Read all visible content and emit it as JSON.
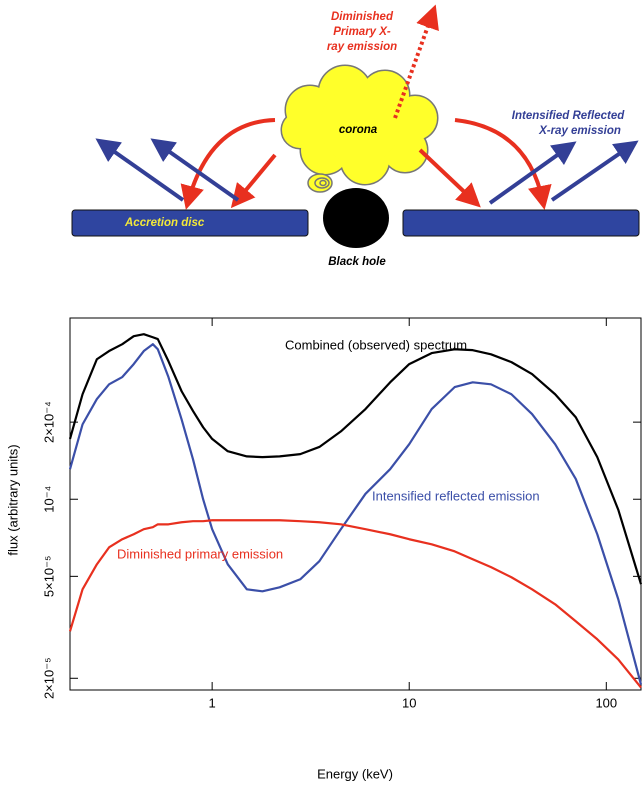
{
  "diagram": {
    "primary_label": [
      "Diminished",
      "Primary X-",
      "ray emission"
    ],
    "corona_label": "corona",
    "reflected_label": [
      "Intensified Reflected",
      "X-ray emission"
    ],
    "disc_label": "Accretion disc",
    "hole_label": "Black hole"
  },
  "chart_data": {
    "type": "line",
    "xlabel": "Energy (keV)",
    "ylabel": "flux (arbitrary units)",
    "xscale": "log",
    "yscale": "log",
    "xlim": [
      0.19,
      150
    ],
    "ylim": [
      1.8e-05,
      0.00051
    ],
    "xticks": [
      1,
      10,
      100
    ],
    "yticks": [
      {
        "value": 2e-05,
        "label": "2×10⁻⁵"
      },
      {
        "value": 5e-05,
        "label": "5×10⁻⁵"
      },
      {
        "value": 0.0001,
        "label": "10⁻⁴"
      },
      {
        "value": 0.0002,
        "label": "2×10⁻⁴"
      }
    ],
    "x": [
      0.19,
      0.22,
      0.26,
      0.3,
      0.35,
      0.4,
      0.45,
      0.5,
      0.53,
      0.6,
      0.7,
      0.8,
      0.9,
      1,
      1.2,
      1.5,
      1.8,
      2.2,
      2.8,
      3.5,
      4.5,
      6,
      8,
      10,
      13,
      17,
      21,
      26,
      33,
      42,
      55,
      70,
      90,
      115,
      150
    ],
    "series": [
      {
        "name": "Combined (observed) spectrum",
        "color": "#000000",
        "values": [
          0.000172,
          0.000257,
          0.000352,
          0.000379,
          0.000403,
          0.000433,
          0.000441,
          0.000429,
          0.000422,
          0.000346,
          0.000264,
          0.000221,
          0.000191,
          0.000172,
          0.000154,
          0.000147,
          0.000146,
          0.000147,
          0.00015,
          0.00016,
          0.000184,
          0.000225,
          0.000286,
          0.000337,
          0.000372,
          0.000385,
          0.000382,
          0.000368,
          0.000343,
          0.000308,
          0.000257,
          0.000209,
          0.000146,
          9.1e-05,
          4.66e-05
        ]
      },
      {
        "name": "Intensified reflected emission",
        "color": "#3b4fa8",
        "values": [
          0.000131,
          0.000196,
          0.000246,
          0.000281,
          0.0003,
          0.000337,
          0.000379,
          0.000403,
          0.000385,
          0.0003,
          0.000205,
          0.000143,
          0.0001,
          7.64e-05,
          5.57e-05,
          4.45e-05,
          4.37e-05,
          4.53e-05,
          4.87e-05,
          5.73e-05,
          7.64e-05,
          0.000105,
          0.000131,
          0.000164,
          0.000225,
          0.000274,
          0.000286,
          0.000281,
          0.000257,
          0.000215,
          0.000164,
          0.00012,
          7.3e-05,
          4.07e-05,
          1.89e-05
        ]
      },
      {
        "name": "Diminished primary emission",
        "color": "#e8301f",
        "values": [
          3.05e-05,
          4.45e-05,
          5.57e-05,
          6.49e-05,
          6.98e-05,
          7.3e-05,
          7.64e-05,
          7.78e-05,
          7.98e-05,
          7.98e-05,
          8.13e-05,
          8.21e-05,
          8.21e-05,
          8.28e-05,
          8.28e-05,
          8.28e-05,
          8.28e-05,
          8.28e-05,
          8.21e-05,
          8.13e-05,
          7.98e-05,
          7.64e-05,
          7.3e-05,
          6.98e-05,
          6.67e-05,
          6.26e-05,
          5.83e-05,
          5.43e-05,
          4.96e-05,
          4.45e-05,
          3.89e-05,
          3.34e-05,
          2.84e-05,
          2.37e-05,
          1.84e-05
        ]
      }
    ]
  }
}
